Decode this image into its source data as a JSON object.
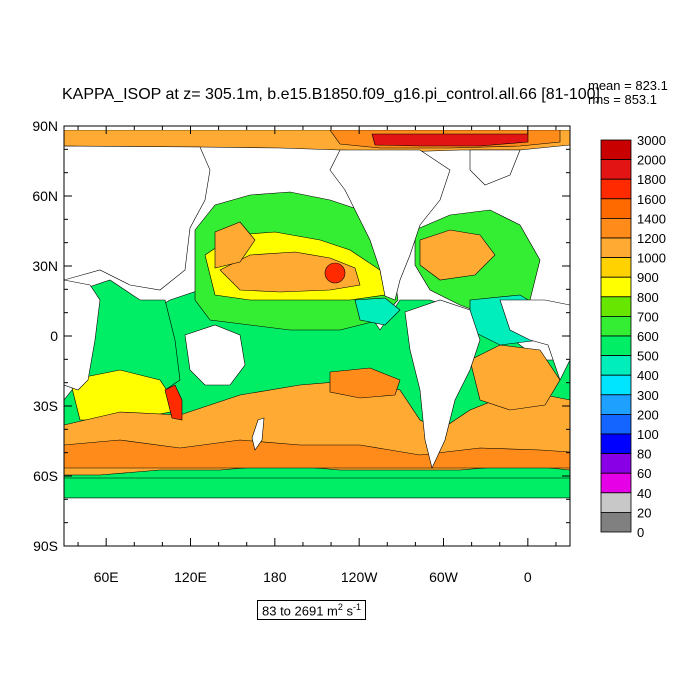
{
  "title": "KAPPA_ISOP at z= 305.1m, b.e15.B1850.f09_g16.pi_control.all.66 [81-100]",
  "stats": {
    "mean": "mean = 823.1",
    "rms": "rms = 853.1"
  },
  "range_label": {
    "text": "83 to 2691 m",
    "sup1": "2",
    "mid": " s",
    "sup2": "-1"
  },
  "lat_labels": [
    "90N",
    "60N",
    "30N",
    "0",
    "30S",
    "60S",
    "90S"
  ],
  "lon_labels": [
    "60E",
    "120E",
    "180",
    "120W",
    "60W",
    "0"
  ],
  "chart_data": {
    "type": "heatmap",
    "variable": "KAPPA_ISOP",
    "units": "m^2 s^-1",
    "value_range": [
      83,
      2691
    ],
    "mean": 823.1,
    "rms": 853.1,
    "lat_range": [
      -90,
      90
    ],
    "lon_range": [
      30,
      390
    ],
    "colorbar": {
      "levels": [
        "3000",
        "2000",
        "1800",
        "1600",
        "1400",
        "1200",
        "1000",
        "900",
        "800",
        "700",
        "600",
        "500",
        "400",
        "300",
        "200",
        "100",
        "80",
        "60",
        "40",
        "20",
        "0"
      ],
      "colors": [
        "#c80000",
        "#e21414",
        "#ff2a00",
        "#ff6a00",
        "#ff8c1a",
        "#ffaa33",
        "#ffd200",
        "#ffff00",
        "#66e600",
        "#33ee33",
        "#00ee66",
        "#00eebb",
        "#00e5ff",
        "#1ea0ff",
        "#1464ff",
        "#0000ff",
        "#8a00e6",
        "#e600e6",
        "#c8c8c8",
        "#808080"
      ]
    }
  }
}
